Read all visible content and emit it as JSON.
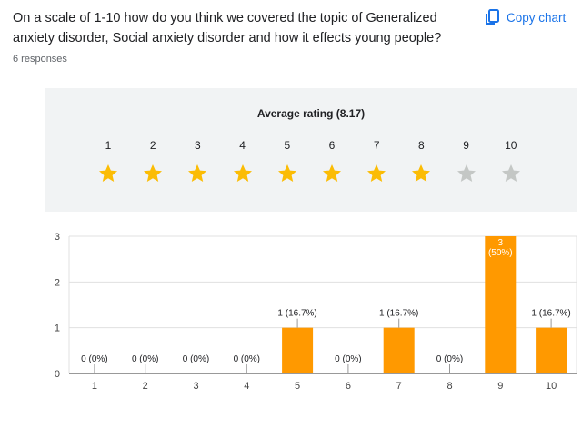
{
  "question": {
    "text": "On a scale of 1-10 how do you think we covered the topic of Generalized anxiety disorder, Social anxiety disorder and how it effects young people?",
    "responses": "6 responses"
  },
  "copy_chart_label": "Copy chart",
  "rating": {
    "title": "Average rating (8.17)",
    "average": 8.17,
    "scale": [
      "1",
      "2",
      "3",
      "4",
      "5",
      "6",
      "7",
      "8",
      "9",
      "10"
    ],
    "filled_stars": 8,
    "star_color_filled": "#fbbc04",
    "star_color_empty": "#c4c7c5"
  },
  "chart_data": {
    "type": "bar",
    "categories": [
      "1",
      "2",
      "3",
      "4",
      "5",
      "6",
      "7",
      "8",
      "9",
      "10"
    ],
    "values": [
      0,
      0,
      0,
      0,
      1,
      0,
      1,
      0,
      3,
      1
    ],
    "labels": [
      "0 (0%)",
      "0 (0%)",
      "0 (0%)",
      "0 (0%)",
      "1 (16.7%)",
      "0 (0%)",
      "1 (16.7%)",
      "0 (0%)",
      "3\n(50%)",
      "1 (16.7%)"
    ],
    "ylim": [
      0,
      3
    ],
    "yticks": [
      "0",
      "1",
      "2",
      "3"
    ],
    "bar_color": "#ff9900",
    "grid": true
  }
}
